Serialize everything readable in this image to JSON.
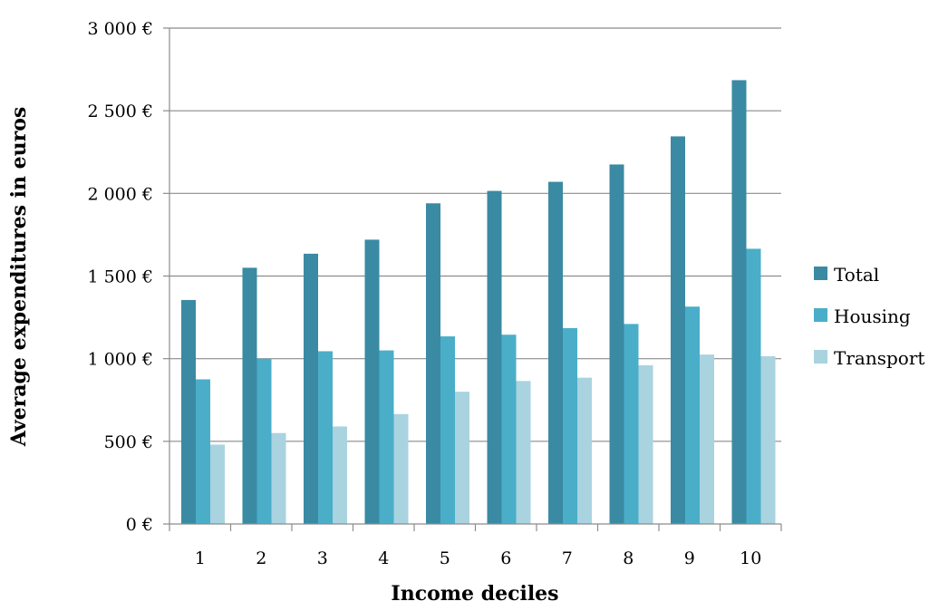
{
  "chart_data": {
    "type": "bar",
    "title": "",
    "xlabel": "Income deciles",
    "ylabel": "Average expenditures in euros",
    "categories": [
      "1",
      "2",
      "3",
      "4",
      "5",
      "6",
      "7",
      "8",
      "9",
      "10"
    ],
    "ylim": [
      0,
      3000
    ],
    "yticks": [
      0,
      500,
      1000,
      1500,
      2000,
      2500,
      3000
    ],
    "ytick_labels": [
      "0 €",
      "500 €",
      "1 000 €",
      "1 500 €",
      "2 000 €",
      "2 500 €",
      "3 000 €"
    ],
    "grid": true,
    "legend_position": "right",
    "series": [
      {
        "name": "Total",
        "color": "#3a8aa3",
        "values": [
          1355,
          1550,
          1635,
          1720,
          1940,
          2015,
          2070,
          2175,
          2345,
          2685
        ]
      },
      {
        "name": "Housing",
        "color": "#4aaec9",
        "values": [
          875,
          1000,
          1045,
          1050,
          1135,
          1145,
          1185,
          1210,
          1315,
          1665
        ]
      },
      {
        "name": "Transport",
        "color": "#a9d3df",
        "values": [
          480,
          550,
          590,
          665,
          800,
          865,
          885,
          960,
          1025,
          1015
        ]
      }
    ]
  }
}
